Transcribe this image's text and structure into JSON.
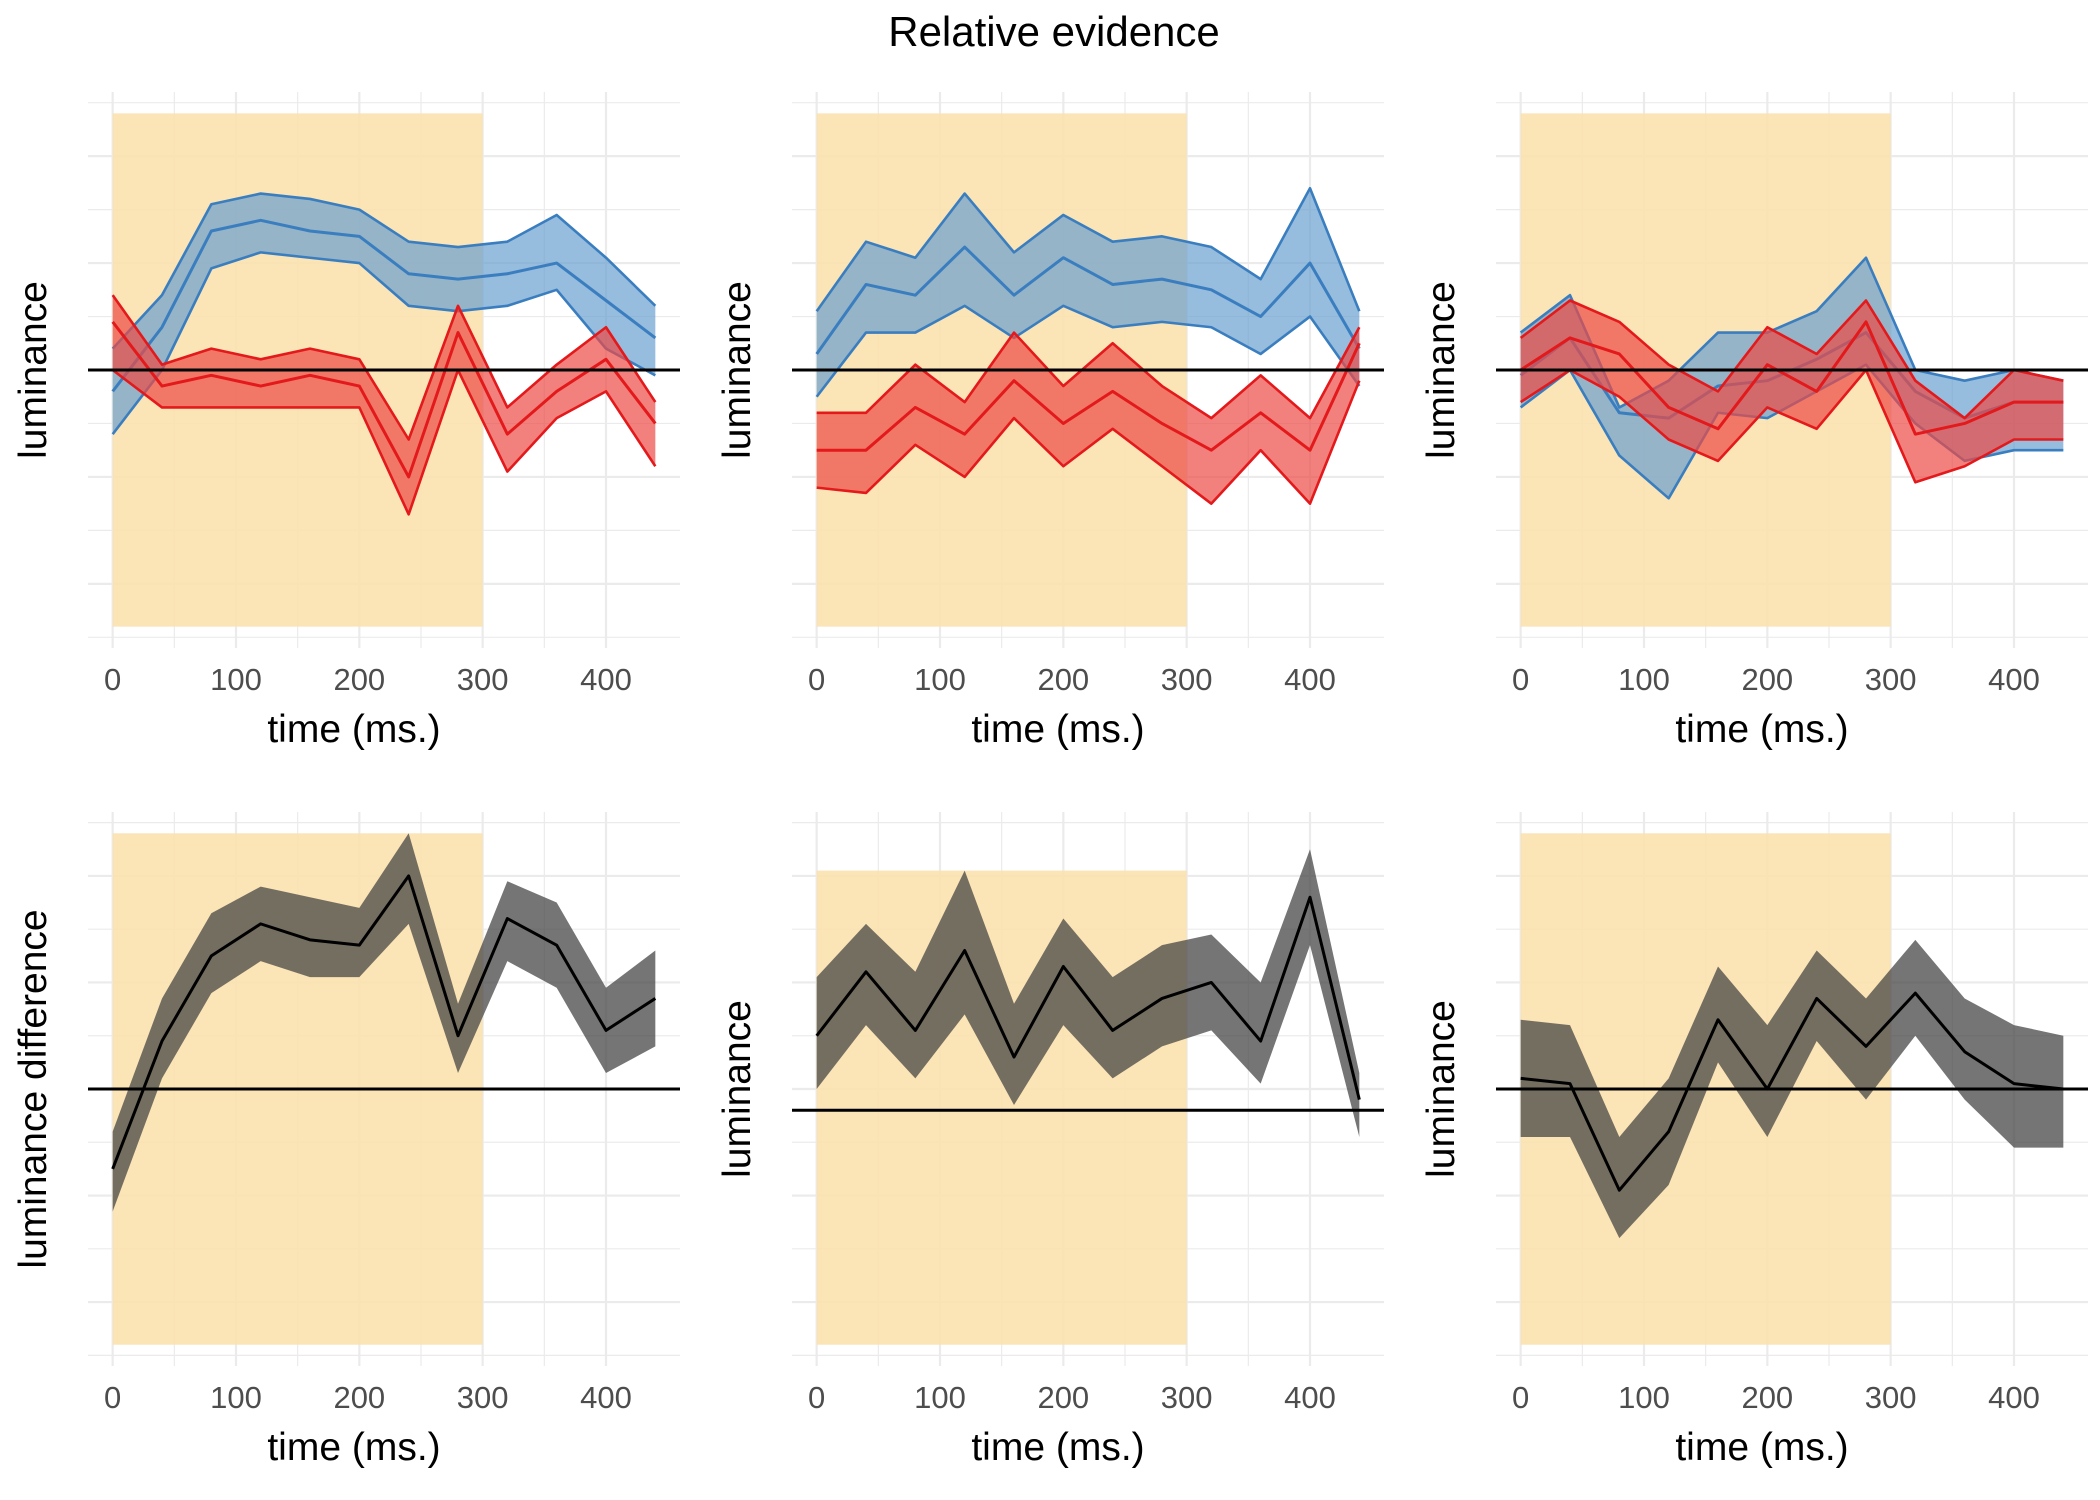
{
  "figure_title": "Relative evidence",
  "colors": {
    "window": "#fbe1ae",
    "grid": "#ebebeb",
    "blue_line": "#3a7ebf",
    "blue_fill": "#6a9fd0",
    "red_line": "#e3191c",
    "red_fill": "#ec4a45",
    "black_line": "#000000",
    "black_fill": "#404040"
  },
  "chart_data": [
    {
      "type": "area",
      "panel": "top-left",
      "xlabel": "time (ms.)",
      "ylabel": "luminance",
      "xticks": [
        0,
        100,
        200,
        300,
        400
      ],
      "xlim": [
        -20,
        460
      ],
      "ylim": [
        -2.6,
        2.6
      ],
      "baseline": 0,
      "window": {
        "x": [
          0,
          300
        ],
        "y": [
          -2.4,
          2.4
        ]
      },
      "x": [
        0,
        40,
        80,
        120,
        160,
        200,
        240,
        280,
        320,
        360,
        400,
        440
      ],
      "series": [
        {
          "color": "blue",
          "mid": [
            -0.2,
            0.4,
            1.3,
            1.4,
            1.3,
            1.25,
            0.9,
            0.85,
            0.9,
            1.0,
            0.65,
            0.3
          ],
          "lo": [
            -0.6,
            0.0,
            0.95,
            1.1,
            1.05,
            1.0,
            0.6,
            0.55,
            0.6,
            0.75,
            0.2,
            -0.05
          ],
          "hi": [
            0.2,
            0.7,
            1.55,
            1.65,
            1.6,
            1.5,
            1.2,
            1.15,
            1.2,
            1.45,
            1.05,
            0.6
          ]
        },
        {
          "color": "red",
          "mid": [
            0.45,
            -0.15,
            -0.05,
            -0.15,
            -0.05,
            -0.15,
            -1.0,
            0.35,
            -0.6,
            -0.2,
            0.1,
            -0.5
          ],
          "lo": [
            0.0,
            -0.35,
            -0.35,
            -0.35,
            -0.35,
            -0.35,
            -1.35,
            0.0,
            -0.95,
            -0.45,
            -0.2,
            -0.9
          ],
          "hi": [
            0.7,
            0.05,
            0.2,
            0.1,
            0.2,
            0.1,
            -0.65,
            0.6,
            -0.35,
            0.05,
            0.4,
            -0.3
          ]
        }
      ]
    },
    {
      "type": "area",
      "panel": "top-middle",
      "xlabel": "time (ms.)",
      "ylabel": "luminance",
      "xticks": [
        0,
        100,
        200,
        300,
        400
      ],
      "xlim": [
        -20,
        460
      ],
      "ylim": [
        -2.6,
        2.6
      ],
      "baseline": 0,
      "window": {
        "x": [
          0,
          300
        ],
        "y": [
          -2.4,
          2.4
        ]
      },
      "x": [
        0,
        40,
        80,
        120,
        160,
        200,
        240,
        280,
        320,
        360,
        400,
        440
      ],
      "series": [
        {
          "color": "blue",
          "mid": [
            0.15,
            0.8,
            0.7,
            1.15,
            0.7,
            1.05,
            0.8,
            0.85,
            0.75,
            0.5,
            1.0,
            0.2
          ],
          "lo": [
            -0.25,
            0.35,
            0.35,
            0.6,
            0.3,
            0.6,
            0.4,
            0.45,
            0.4,
            0.15,
            0.5,
            -0.15
          ],
          "hi": [
            0.55,
            1.2,
            1.05,
            1.65,
            1.1,
            1.45,
            1.2,
            1.25,
            1.15,
            0.85,
            1.7,
            0.55
          ]
        },
        {
          "color": "red",
          "mid": [
            -0.75,
            -0.75,
            -0.35,
            -0.6,
            -0.1,
            -0.5,
            -0.2,
            -0.5,
            -0.75,
            -0.4,
            -0.75,
            0.25
          ],
          "lo": [
            -1.1,
            -1.15,
            -0.7,
            -1.0,
            -0.45,
            -0.9,
            -0.55,
            -0.9,
            -1.25,
            -0.75,
            -1.25,
            -0.1
          ],
          "hi": [
            -0.4,
            -0.4,
            0.05,
            -0.3,
            0.35,
            -0.15,
            0.25,
            -0.15,
            -0.45,
            -0.05,
            -0.45,
            0.4
          ]
        }
      ]
    },
    {
      "type": "area",
      "panel": "top-right",
      "xlabel": "time (ms.)",
      "ylabel": "luminance",
      "xticks": [
        0,
        100,
        200,
        300,
        400
      ],
      "xlim": [
        -20,
        460
      ],
      "ylim": [
        -2.6,
        2.6
      ],
      "baseline": 0,
      "window": {
        "x": [
          0,
          300
        ],
        "y": [
          -2.4,
          2.4
        ]
      },
      "x": [
        0,
        40,
        80,
        120,
        160,
        200,
        240,
        280,
        320,
        360,
        400,
        440
      ],
      "series": [
        {
          "color": "blue",
          "mid": [
            -0.05,
            0.3,
            -0.4,
            -0.45,
            -0.15,
            -0.1,
            0.1,
            0.35,
            -0.2,
            -0.45,
            -0.3,
            -0.3
          ],
          "lo": [
            -0.35,
            0.0,
            -0.8,
            -1.2,
            -0.4,
            -0.45,
            -0.2,
            0.05,
            -0.5,
            -0.85,
            -0.75,
            -0.75
          ],
          "hi": [
            0.35,
            0.7,
            -0.35,
            -0.1,
            0.35,
            0.35,
            0.55,
            1.05,
            0.0,
            -0.1,
            0.0,
            -0.1
          ]
        },
        {
          "color": "red",
          "mid": [
            0.0,
            0.3,
            0.15,
            -0.35,
            -0.55,
            0.05,
            -0.2,
            0.45,
            -0.6,
            -0.5,
            -0.3,
            -0.3
          ],
          "lo": [
            -0.3,
            0.0,
            -0.25,
            -0.65,
            -0.85,
            -0.35,
            -0.55,
            0.0,
            -1.05,
            -0.9,
            -0.65,
            -0.65
          ],
          "hi": [
            0.3,
            0.65,
            0.45,
            0.05,
            -0.2,
            0.4,
            0.15,
            0.65,
            -0.1,
            -0.45,
            0.0,
            -0.1
          ]
        }
      ]
    },
    {
      "type": "area",
      "panel": "bottom-left",
      "xlabel": "time (ms.)",
      "ylabel": "luminance difference",
      "xticks": [
        0,
        100,
        200,
        300,
        400
      ],
      "xlim": [
        -20,
        460
      ],
      "ylim": [
        -2.6,
        2.6
      ],
      "baseline": 0,
      "window": {
        "x": [
          0,
          300
        ],
        "y": [
          -2.4,
          2.4
        ]
      },
      "x": [
        0,
        40,
        80,
        120,
        160,
        200,
        240,
        280,
        320,
        360,
        400,
        440
      ],
      "series": [
        {
          "color": "black",
          "mid": [
            -0.75,
            0.45,
            1.25,
            1.55,
            1.4,
            1.35,
            2.0,
            0.5,
            1.6,
            1.35,
            0.55,
            0.85
          ],
          "lo": [
            -1.15,
            0.1,
            0.9,
            1.2,
            1.05,
            1.05,
            1.55,
            0.15,
            1.2,
            0.95,
            0.15,
            0.4
          ],
          "hi": [
            -0.4,
            0.85,
            1.65,
            1.9,
            1.8,
            1.7,
            2.4,
            0.8,
            1.95,
            1.75,
            0.95,
            1.3
          ]
        }
      ]
    },
    {
      "type": "area",
      "panel": "bottom-middle",
      "xlabel": "time (ms.)",
      "ylabel": "luminance",
      "xticks": [
        0,
        100,
        200,
        300,
        400
      ],
      "xlim": [
        -20,
        460
      ],
      "ylim": [
        -2.6,
        2.6
      ],
      "baseline": -0.2,
      "window": {
        "x": [
          0,
          300
        ],
        "y": [
          -2.4,
          2.05
        ]
      },
      "x": [
        0,
        40,
        80,
        120,
        160,
        200,
        240,
        280,
        320,
        360,
        400,
        440
      ],
      "series": [
        {
          "color": "black",
          "mid": [
            0.5,
            1.1,
            0.55,
            1.3,
            0.3,
            1.15,
            0.55,
            0.85,
            1.0,
            0.45,
            1.8,
            -0.1
          ],
          "lo": [
            0.0,
            0.6,
            0.1,
            0.7,
            -0.15,
            0.6,
            0.1,
            0.4,
            0.55,
            0.05,
            1.35,
            -0.45
          ],
          "hi": [
            1.05,
            1.55,
            1.1,
            2.05,
            0.8,
            1.6,
            1.05,
            1.35,
            1.45,
            1.0,
            2.25,
            0.15
          ]
        }
      ]
    },
    {
      "type": "area",
      "panel": "bottom-right",
      "xlabel": "time (ms.)",
      "ylabel": "luminance",
      "xticks": [
        0,
        100,
        200,
        300,
        400
      ],
      "xlim": [
        -20,
        460
      ],
      "ylim": [
        -2.6,
        2.6
      ],
      "baseline": 0,
      "window": {
        "x": [
          0,
          300
        ],
        "y": [
          -2.4,
          2.4
        ]
      },
      "x": [
        0,
        40,
        80,
        120,
        160,
        200,
        240,
        280,
        320,
        360,
        400,
        440
      ],
      "series": [
        {
          "color": "black",
          "mid": [
            0.1,
            0.05,
            -0.95,
            -0.4,
            0.65,
            0.0,
            0.85,
            0.4,
            0.9,
            0.35,
            0.05,
            0.0
          ],
          "lo": [
            -0.45,
            -0.45,
            -1.4,
            -0.9,
            0.25,
            -0.45,
            0.45,
            -0.1,
            0.5,
            -0.1,
            -0.55,
            -0.55
          ],
          "hi": [
            0.65,
            0.6,
            -0.45,
            0.1,
            1.15,
            0.6,
            1.3,
            0.85,
            1.4,
            0.85,
            0.6,
            0.5
          ]
        }
      ]
    }
  ]
}
